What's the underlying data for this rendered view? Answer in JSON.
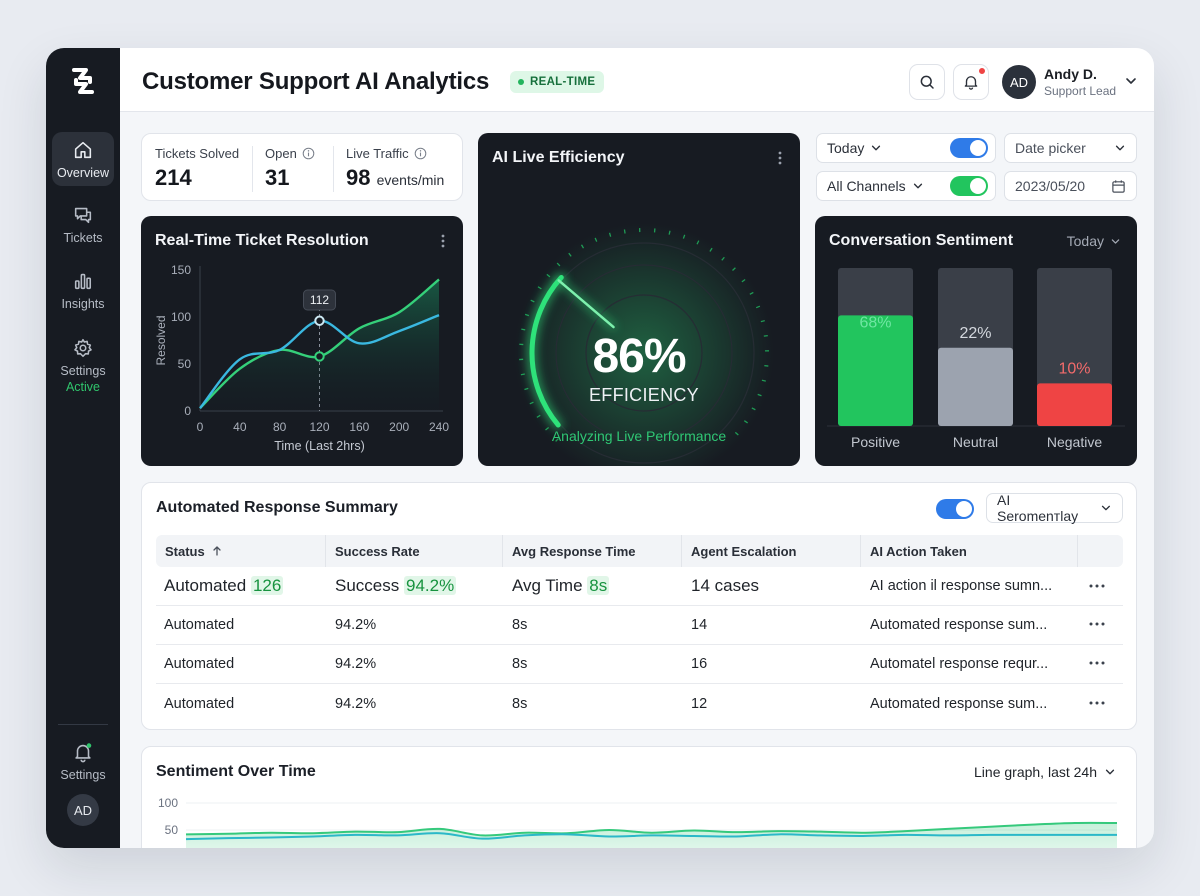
{
  "app": {
    "title": "Customer Support AI Analytics",
    "badge": "REAL-TIME"
  },
  "sidebar": {
    "items": [
      {
        "label": "Overview",
        "icon": "home-icon"
      },
      {
        "label": "Tickets",
        "icon": "chat-icon"
      },
      {
        "label": "Insights",
        "icon": "bar-chart-icon"
      },
      {
        "label": "Settings",
        "icon": "gear-icon",
        "sub": "Active"
      }
    ],
    "bottom": {
      "label": "Settings",
      "icon": "bell-icon",
      "avatar": "AD"
    }
  },
  "user": {
    "initials": "AD",
    "name": "Andy D.",
    "role": "Support Lead"
  },
  "stats": {
    "solved_label": "Tickets Solved",
    "solved_value": "214",
    "open_label": "Open",
    "open_value": "31",
    "traffic_label": "Live Traffic",
    "traffic_value": "98",
    "traffic_unit": "events/min"
  },
  "efficiency": {
    "title": "AI Live Efficiency",
    "value": "86%",
    "label": "EFFICIENCY",
    "caption": "Analyzing Live Performance",
    "level": 0.86,
    "accent": "#2ee27a"
  },
  "filters": {
    "period": "Today",
    "channels": "All Channels",
    "date_picker": "Date picker",
    "date": "2023/05/20"
  },
  "resolution": {
    "title": "Real-Time Ticket Resolution",
    "tooltip": "112",
    "chart_data": {
      "type": "line",
      "title": "Real-Time Ticket Resolution",
      "xlabel": "Time (Last 2hrs)",
      "ylabel": "Resolved",
      "x": [
        0,
        40,
        80,
        120,
        160,
        200,
        240
      ],
      "ylim": [
        0,
        150
      ],
      "yticks": [
        0,
        50,
        100,
        150
      ],
      "series": [
        {
          "values": [
            3,
            45,
            65,
            58,
            88,
            105,
            140
          ],
          "color": "#35d07a"
        },
        {
          "values": [
            3,
            55,
            65,
            96,
            72,
            85,
            102
          ],
          "color": "#3ab8e0"
        }
      ]
    }
  },
  "sentiment": {
    "title": "Conversation Sentiment",
    "period": "Today",
    "chart_data": {
      "type": "bar",
      "categories": [
        "Positive",
        "Neutral",
        "Negative"
      ],
      "values": [
        68,
        22,
        10
      ],
      "labels": [
        "68%",
        "22%",
        "10%"
      ],
      "ylim": [
        0,
        100
      ],
      "colors": [
        "#22c55e",
        "#9ca3af",
        "#ef4444"
      ]
    }
  },
  "summary": {
    "title": "Automated Response Summary",
    "dropdown": "AI Seromenтlay",
    "columns": [
      "Status",
      "Success Rate",
      "Avg Response Time",
      "Agent Escalation",
      "AI Action Taken"
    ],
    "first_row": {
      "status": "Automated",
      "status_hl": "126",
      "success": "Success",
      "success_hl": "94.2%",
      "avg": "Avg Time",
      "avg_hl": "8s",
      "escalation": "14 cases",
      "action": "AI action il response sumn..."
    },
    "rows": [
      {
        "status": "Automated",
        "success": "94.2%",
        "avg": "8s",
        "escalation": "14",
        "action": "Automated response sum..."
      },
      {
        "status": "Automated",
        "success": "94.2%",
        "avg": "8s",
        "escalation": "16",
        "action": "Automatel response requr..."
      },
      {
        "status": "Automated",
        "success": "94.2%",
        "avg": "8s",
        "escalation": "12",
        "action": "Automated response sum..."
      }
    ]
  },
  "sentiment_time": {
    "title": "Sentiment Over Time",
    "dropdown": "Line graph, last 24h",
    "chart_data": {
      "type": "area",
      "yticks": [
        50,
        100
      ],
      "series": [
        {
          "values": [
            42,
            43,
            45,
            44,
            47,
            46,
            52,
            40,
            45,
            44,
            50,
            45,
            49,
            46,
            48,
            47,
            45,
            48,
            52,
            56,
            60,
            63,
            63
          ],
          "color": "#35c97c"
        },
        {
          "values": [
            33,
            35,
            36,
            38,
            41,
            40,
            44,
            34,
            40,
            42,
            38,
            40,
            39,
            38,
            42,
            40,
            39,
            41,
            40,
            41,
            41,
            41,
            41
          ],
          "color": "#2bb8c8"
        }
      ]
    }
  }
}
